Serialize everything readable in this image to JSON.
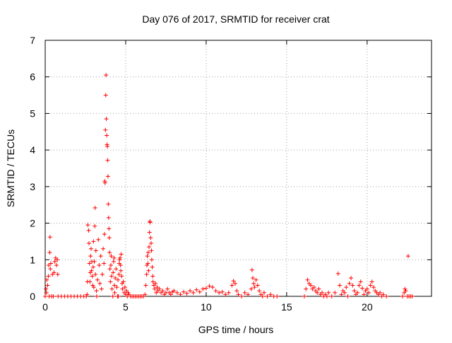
{
  "chart_data": {
    "type": "scatter",
    "title": "Day 076 of 2017, SRMTID for receiver crat",
    "xlabel": "GPS time / hours",
    "ylabel": "SRMTID / TECUs",
    "xlim": [
      0,
      24
    ],
    "ylim": [
      0,
      7
    ],
    "xticks": [
      0,
      5,
      10,
      15,
      20
    ],
    "yticks": [
      0,
      1,
      2,
      3,
      4,
      5,
      6,
      7
    ],
    "grid": true,
    "marker": "+",
    "color": "#ff0000",
    "series": [
      {
        "name": "SRMTID",
        "points": [
          [
            0.0,
            0.0
          ],
          [
            0.05,
            0.2
          ],
          [
            0.08,
            0.1
          ],
          [
            0.1,
            0.45
          ],
          [
            0.15,
            0.3
          ],
          [
            0.2,
            0.55
          ],
          [
            0.22,
            0.85
          ],
          [
            0.25,
            0.0
          ],
          [
            0.28,
            1.2
          ],
          [
            0.3,
            1.62
          ],
          [
            0.32,
            0.75
          ],
          [
            0.35,
            0.9
          ],
          [
            0.4,
            0.0
          ],
          [
            0.45,
            0.6
          ],
          [
            0.5,
            0.0
          ],
          [
            0.55,
            0.65
          ],
          [
            0.6,
            0.95
          ],
          [
            0.65,
            1.05
          ],
          [
            0.7,
            0.85
          ],
          [
            0.75,
            1.0
          ],
          [
            0.78,
            0.6
          ],
          [
            0.8,
            0.0
          ],
          [
            1.0,
            0.0
          ],
          [
            1.2,
            0.0
          ],
          [
            1.4,
            0.0
          ],
          [
            1.6,
            0.0
          ],
          [
            1.8,
            0.0
          ],
          [
            2.0,
            0.0
          ],
          [
            2.2,
            0.0
          ],
          [
            2.4,
            0.0
          ],
          [
            2.55,
            0.0
          ],
          [
            2.6,
            0.05
          ],
          [
            2.62,
            0.4
          ],
          [
            2.65,
            1.95
          ],
          [
            2.7,
            1.8
          ],
          [
            2.72,
            1.45
          ],
          [
            2.75,
            0.9
          ],
          [
            2.78,
            0.4
          ],
          [
            2.8,
            0.65
          ],
          [
            2.82,
            1.1
          ],
          [
            2.85,
            1.3
          ],
          [
            2.88,
            0.7
          ],
          [
            2.9,
            0.95
          ],
          [
            2.92,
            0.55
          ],
          [
            2.95,
            0.3
          ],
          [
            2.98,
            0.8
          ],
          [
            3.0,
            1.5
          ],
          [
            3.02,
            0.25
          ],
          [
            3.05,
            0.95
          ],
          [
            3.08,
            1.92
          ],
          [
            3.1,
            2.42
          ],
          [
            3.12,
            0.6
          ],
          [
            3.15,
            1.25
          ],
          [
            3.18,
            0.15
          ],
          [
            3.2,
            0.0
          ],
          [
            3.25,
            0.45
          ],
          [
            3.3,
            1.55
          ],
          [
            3.35,
            0.85
          ],
          [
            3.4,
            0.35
          ],
          [
            3.45,
            1.1
          ],
          [
            3.5,
            0.2
          ],
          [
            3.55,
            0.6
          ],
          [
            3.6,
            1.3
          ],
          [
            3.65,
            0.9
          ],
          [
            3.68,
            1.7
          ],
          [
            3.7,
            3.15
          ],
          [
            3.72,
            3.1
          ],
          [
            3.74,
            4.55
          ],
          [
            3.76,
            5.5
          ],
          [
            3.78,
            6.05
          ],
          [
            3.8,
            4.85
          ],
          [
            3.82,
            4.4
          ],
          [
            3.84,
            4.15
          ],
          [
            3.86,
            4.1
          ],
          [
            3.88,
            3.72
          ],
          [
            3.9,
            3.28
          ],
          [
            3.92,
            2.52
          ],
          [
            3.94,
            2.15
          ],
          [
            3.96,
            1.85
          ],
          [
            3.98,
            1.6
          ],
          [
            4.0,
            1.2
          ],
          [
            4.02,
            0.75
          ],
          [
            4.05,
            0.4
          ],
          [
            4.08,
            0.85
          ],
          [
            4.1,
            1.1
          ],
          [
            4.12,
            0.55
          ],
          [
            4.15,
            0.2
          ],
          [
            4.2,
            0.0
          ],
          [
            4.22,
            0.65
          ],
          [
            4.25,
            0.95
          ],
          [
            4.28,
            1.05
          ],
          [
            4.3,
            0.3
          ],
          [
            4.32,
            0.1
          ],
          [
            4.35,
            0.5
          ],
          [
            4.4,
            0.75
          ],
          [
            4.45,
            0.25
          ],
          [
            4.5,
            0.0
          ],
          [
            4.52,
            0.45
          ],
          [
            4.55,
            0.0
          ],
          [
            4.58,
            0.6
          ],
          [
            4.6,
            0.9
          ],
          [
            4.62,
            1.0
          ],
          [
            4.65,
            1.05
          ],
          [
            4.68,
            0.85
          ],
          [
            4.7,
            0.7
          ],
          [
            4.72,
            1.15
          ],
          [
            4.75,
            0.55
          ],
          [
            4.78,
            0.35
          ],
          [
            4.8,
            0.2
          ],
          [
            4.85,
            0.4
          ],
          [
            4.9,
            0.1
          ],
          [
            4.95,
            0.25
          ],
          [
            5.0,
            0.05
          ],
          [
            5.05,
            0.15
          ],
          [
            5.1,
            0.0
          ],
          [
            5.15,
            0.1
          ],
          [
            5.2,
            0.05
          ],
          [
            5.3,
            0.0
          ],
          [
            5.4,
            0.0
          ],
          [
            5.5,
            0.0
          ],
          [
            5.6,
            0.0
          ],
          [
            5.7,
            0.0
          ],
          [
            5.8,
            0.0
          ],
          [
            5.9,
            0.0
          ],
          [
            6.0,
            0.0
          ],
          [
            6.1,
            0.0
          ],
          [
            6.2,
            0.05
          ],
          [
            6.25,
            0.3
          ],
          [
            6.3,
            0.6
          ],
          [
            6.32,
            0.85
          ],
          [
            6.35,
            1.1
          ],
          [
            6.38,
            0.9
          ],
          [
            6.4,
            1.2
          ],
          [
            6.42,
            0.7
          ],
          [
            6.45,
            1.35
          ],
          [
            6.48,
            1.75
          ],
          [
            6.5,
            2.05
          ],
          [
            6.52,
            2.02
          ],
          [
            6.55,
            1.6
          ],
          [
            6.58,
            1.45
          ],
          [
            6.6,
            1.25
          ],
          [
            6.62,
            1.0
          ],
          [
            6.65,
            0.8
          ],
          [
            6.68,
            0.55
          ],
          [
            6.7,
            0.4
          ],
          [
            6.75,
            0.3
          ],
          [
            6.8,
            0.2
          ],
          [
            6.85,
            0.35
          ],
          [
            6.9,
            0.1
          ],
          [
            6.95,
            0.25
          ],
          [
            7.0,
            0.15
          ],
          [
            7.1,
            0.2
          ],
          [
            7.2,
            0.1
          ],
          [
            7.3,
            0.15
          ],
          [
            7.4,
            0.05
          ],
          [
            7.5,
            0.1
          ],
          [
            7.6,
            0.2
          ],
          [
            7.7,
            0.1
          ],
          [
            7.8,
            0.05
          ],
          [
            7.9,
            0.12
          ],
          [
            8.0,
            0.15
          ],
          [
            8.2,
            0.1
          ],
          [
            8.4,
            0.05
          ],
          [
            8.6,
            0.12
          ],
          [
            8.8,
            0.08
          ],
          [
            9.0,
            0.15
          ],
          [
            9.2,
            0.1
          ],
          [
            9.4,
            0.18
          ],
          [
            9.6,
            0.12
          ],
          [
            9.8,
            0.2
          ],
          [
            10.0,
            0.22
          ],
          [
            10.2,
            0.28
          ],
          [
            10.4,
            0.25
          ],
          [
            10.6,
            0.15
          ],
          [
            10.8,
            0.1
          ],
          [
            11.0,
            0.12
          ],
          [
            11.2,
            0.05
          ],
          [
            11.4,
            0.1
          ],
          [
            11.6,
            0.3
          ],
          [
            11.7,
            0.42
          ],
          [
            11.8,
            0.35
          ],
          [
            11.9,
            0.15
          ],
          [
            12.0,
            0.05
          ],
          [
            12.2,
            0.0
          ],
          [
            12.4,
            0.1
          ],
          [
            12.6,
            0.05
          ],
          [
            12.8,
            0.2
          ],
          [
            12.85,
            0.72
          ],
          [
            12.9,
            0.5
          ],
          [
            12.95,
            0.35
          ],
          [
            13.0,
            0.25
          ],
          [
            13.1,
            0.45
          ],
          [
            13.2,
            0.3
          ],
          [
            13.3,
            0.15
          ],
          [
            13.4,
            0.05
          ],
          [
            13.5,
            0.0
          ],
          [
            13.6,
            0.1
          ],
          [
            13.8,
            0.0
          ],
          [
            14.0,
            0.05
          ],
          [
            14.2,
            0.0
          ],
          [
            14.4,
            0.0
          ],
          [
            16.1,
            0.0
          ],
          [
            16.2,
            0.2
          ],
          [
            16.3,
            0.45
          ],
          [
            16.4,
            0.35
          ],
          [
            16.5,
            0.3
          ],
          [
            16.6,
            0.2
          ],
          [
            16.7,
            0.25
          ],
          [
            16.8,
            0.15
          ],
          [
            16.9,
            0.1
          ],
          [
            17.0,
            0.2
          ],
          [
            17.1,
            0.05
          ],
          [
            17.2,
            0.1
          ],
          [
            17.3,
            0.0
          ],
          [
            17.4,
            0.05
          ],
          [
            17.5,
            0.0
          ],
          [
            17.6,
            0.1
          ],
          [
            17.8,
            0.0
          ],
          [
            18.0,
            0.1
          ],
          [
            18.2,
            0.62
          ],
          [
            18.3,
            0.3
          ],
          [
            18.4,
            0.05
          ],
          [
            18.5,
            0.15
          ],
          [
            18.6,
            0.1
          ],
          [
            18.7,
            0.25
          ],
          [
            18.8,
            0.0
          ],
          [
            18.9,
            0.35
          ],
          [
            19.0,
            0.5
          ],
          [
            19.1,
            0.3
          ],
          [
            19.2,
            0.15
          ],
          [
            19.3,
            0.05
          ],
          [
            19.4,
            0.1
          ],
          [
            19.5,
            0.3
          ],
          [
            19.6,
            0.4
          ],
          [
            19.7,
            0.22
          ],
          [
            19.8,
            0.05
          ],
          [
            19.9,
            0.15
          ],
          [
            20.0,
            0.2
          ],
          [
            20.1,
            0.1
          ],
          [
            20.2,
            0.3
          ],
          [
            20.3,
            0.4
          ],
          [
            20.4,
            0.25
          ],
          [
            20.5,
            0.15
          ],
          [
            20.6,
            0.1
          ],
          [
            20.7,
            0.05
          ],
          [
            20.8,
            0.1
          ],
          [
            20.9,
            0.0
          ],
          [
            21.0,
            0.05
          ],
          [
            21.2,
            0.0
          ],
          [
            22.2,
            0.0
          ],
          [
            22.3,
            0.1
          ],
          [
            22.35,
            0.2
          ],
          [
            22.4,
            0.15
          ],
          [
            22.5,
            0.0
          ],
          [
            22.55,
            1.1
          ],
          [
            22.6,
            0.0
          ],
          [
            22.7,
            0.0
          ],
          [
            22.8,
            0.0
          ]
        ]
      }
    ]
  }
}
